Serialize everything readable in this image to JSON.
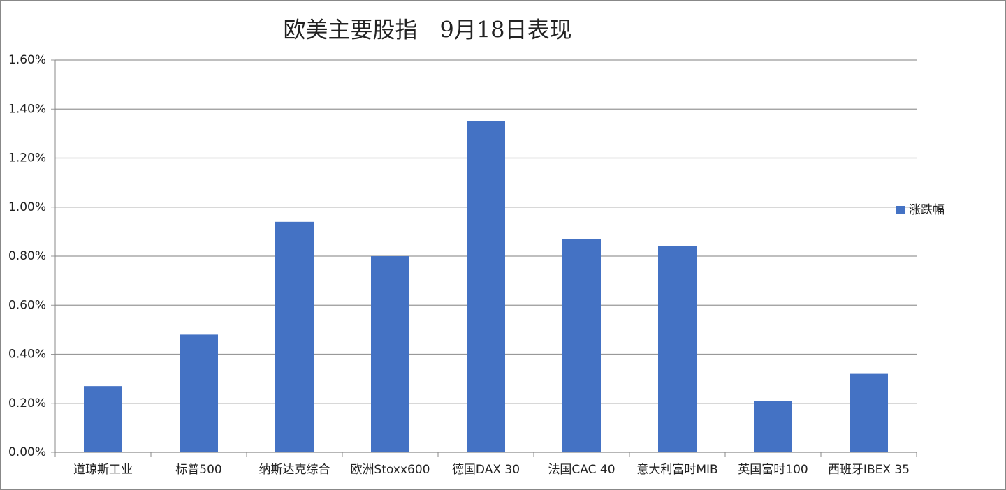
{
  "chart_data": {
    "type": "bar",
    "title": "欧美主要股指　9月18日表现",
    "categories": [
      "道琼斯工业",
      "标普500",
      "纳斯达克综合",
      "欧洲Stoxx600",
      "德国DAX 30",
      "法国CAC 40",
      "意大利富时MIB",
      "英国富时100",
      "西班牙IBEX 35"
    ],
    "series": [
      {
        "name": "涨跌幅",
        "color": "#4472c4",
        "values": [
          0.27,
          0.48,
          0.94,
          0.8,
          1.35,
          0.87,
          0.84,
          0.21,
          0.32
        ]
      }
    ],
    "ylim": [
      0,
      1.6
    ],
    "yticks": [
      {
        "value": 0,
        "label": "0.00%"
      },
      {
        "value": 0.2,
        "label": "0.20%"
      },
      {
        "value": 0.4,
        "label": "0.40%"
      },
      {
        "value": 0.6,
        "label": "0.60%"
      },
      {
        "value": 0.8,
        "label": "0.80%"
      },
      {
        "value": 1.0,
        "label": "1.00%"
      },
      {
        "value": 1.2,
        "label": "1.20%"
      },
      {
        "value": 1.4,
        "label": "1.40%"
      },
      {
        "value": 1.6,
        "label": "1.60%"
      }
    ],
    "grid": true,
    "legend": "right"
  }
}
